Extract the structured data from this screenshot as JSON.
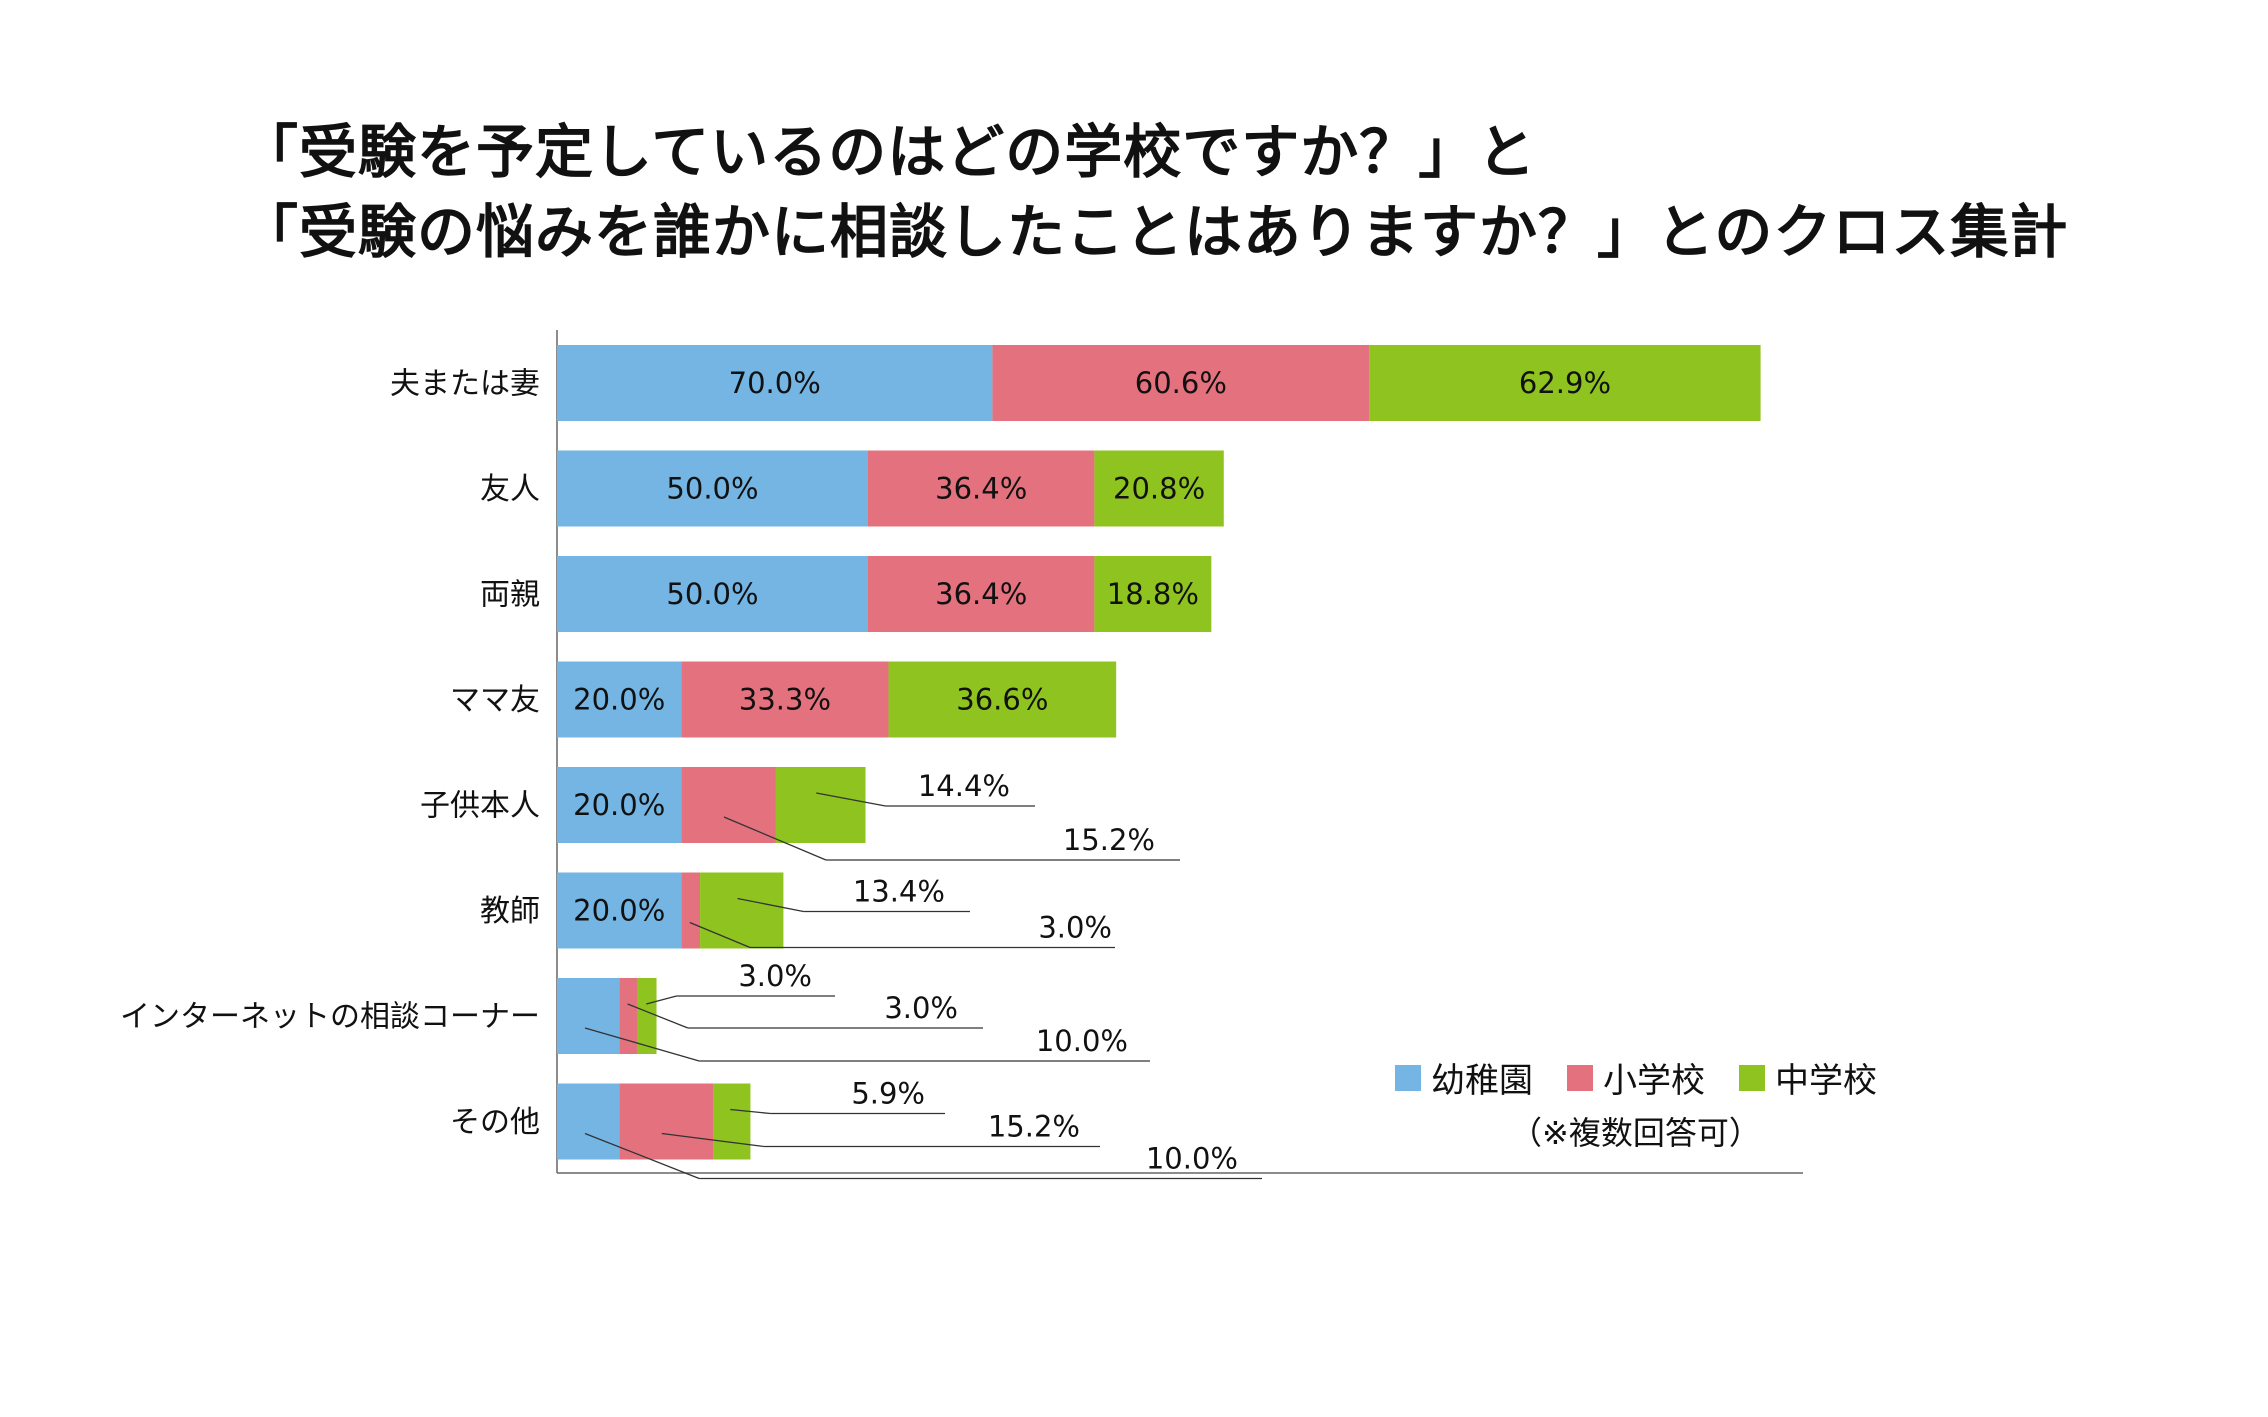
{
  "chart_data": {
    "type": "bar",
    "orientation": "horizontal",
    "stacked": true,
    "title": "「受験を予定しているのはどの学校ですか？」と 「受験の悩みを誰かに相談したことはありますか？」とのクロス集計",
    "title_lines": [
      "「受験を予定しているのはどの学校ですか？」と",
      "「受験の悩みを誰かに相談したことはありますか？」とのクロス集計"
    ],
    "categories": [
      "夫または妻",
      "友人",
      "両親",
      "ママ友",
      "子供本人",
      "教師",
      "インターネットの相談コーナー",
      "その他"
    ],
    "series": [
      {
        "name": "幼稚園",
        "color": "#74b5e3",
        "values": [
          70.0,
          50.0,
          50.0,
          20.0,
          20.0,
          20.0,
          10.0,
          10.0
        ]
      },
      {
        "name": "小学校",
        "color": "#e3727e",
        "values": [
          60.6,
          36.4,
          36.4,
          33.3,
          15.2,
          3.0,
          3.0,
          15.2
        ]
      },
      {
        "name": "中学校",
        "color": "#8fc31f",
        "values": [
          62.9,
          20.8,
          18.8,
          36.6,
          14.4,
          13.4,
          3.0,
          5.9
        ]
      }
    ],
    "labels": [
      [
        "70.0%",
        "60.6%",
        "62.9%"
      ],
      [
        "50.0%",
        "36.4%",
        "20.8%"
      ],
      [
        "50.0%",
        "36.4%",
        "18.8%"
      ],
      [
        "20.0%",
        "33.3%",
        "36.6%"
      ],
      [
        "20.0%",
        "15.2%",
        "14.4%"
      ],
      [
        "20.0%",
        "3.0%",
        "13.4%"
      ],
      [
        "10.0%",
        "3.0%",
        "3.0%"
      ],
      [
        "10.0%",
        "15.2%",
        "5.9%"
      ]
    ],
    "legend_position": "bottom-right",
    "note": "（※複数回答可）",
    "grid": false
  }
}
